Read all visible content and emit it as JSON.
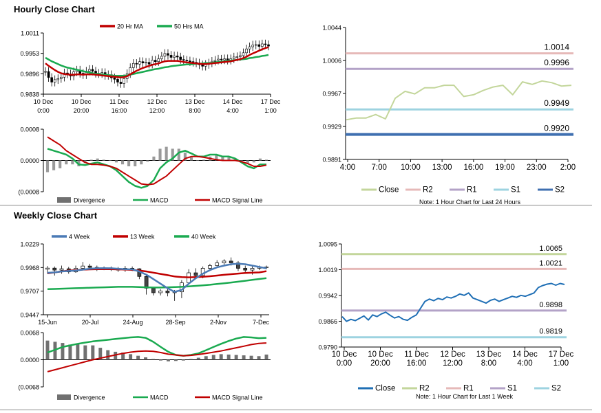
{
  "hourly_title": "Hourly Close Chart",
  "weekly_title": "Weekly Close Chart",
  "colors": {
    "red": "#c00000",
    "green": "#1aaa50",
    "blue": "#4a7ab5",
    "bar_gray": "#707070",
    "hist_gray": "#9a9a9a",
    "pale_green": "#c3d69b",
    "pink": "#e6b9b8",
    "lavender": "#b3a2c7",
    "light_blue": "#9dd3e0",
    "steel_blue": "#3f6fb0",
    "close_blue": "#1f6fb5",
    "grid": "#d9d9d9"
  },
  "chart_data": [
    {
      "id": "hourly_price",
      "type": "candlestick",
      "legend": [
        "20 Hr MA",
        "50 Hrs MA"
      ],
      "y_ticks": [
        "1.0011",
        "0.9953",
        "0.9896",
        "0.9838"
      ],
      "ylim": [
        0.9838,
        1.0011
      ],
      "x_ticks": [
        [
          "10 Dec",
          "0:00"
        ],
        [
          "10 Dec",
          "20:00"
        ],
        [
          "11 Dec",
          "16:00"
        ],
        [
          "12 Dec",
          "12:00"
        ],
        [
          "13 Dec",
          "8:00"
        ],
        [
          "14 Dec",
          "4:00"
        ],
        [
          "17 Dec",
          "1:00"
        ]
      ],
      "close": [
        0.9902,
        0.9885,
        0.9872,
        0.9879,
        0.9882,
        0.9886,
        0.9898,
        0.9895,
        0.9889,
        0.9901,
        0.9906,
        0.9897,
        0.9893,
        0.9903,
        0.9908,
        0.9903,
        0.9897,
        0.9896,
        0.9899,
        0.9891,
        0.9893,
        0.9884,
        0.988,
        0.9872,
        0.9868,
        0.9882,
        0.9896,
        0.9913,
        0.9925,
        0.9923,
        0.993,
        0.9926,
        0.9928,
        0.9923,
        0.9934,
        0.993,
        0.9938,
        0.9945,
        0.9953,
        0.9948,
        0.9942,
        0.9946,
        0.9943,
        0.9936,
        0.9934,
        0.9932,
        0.993,
        0.9928,
        0.9926,
        0.9921,
        0.9917,
        0.9922,
        0.9926,
        0.9931,
        0.9934,
        0.9937,
        0.9935,
        0.9938,
        0.9934,
        0.9938,
        0.9943,
        0.9944,
        0.9947,
        0.9955,
        0.9966,
        0.9972,
        0.9977,
        0.9978,
        0.9973,
        0.998,
        0.9978,
        0.9974
      ],
      "ma20": [
        0.9925,
        0.9918,
        0.9912,
        0.9906,
        0.9901,
        0.9897,
        0.9895,
        0.9894,
        0.9893,
        0.9893,
        0.9894,
        0.9894,
        0.9893,
        0.9894,
        0.9894,
        0.9894,
        0.9893,
        0.9892,
        0.9891,
        0.989,
        0.9889,
        0.9888,
        0.9887,
        0.9886,
        0.9885,
        0.9886,
        0.9889,
        0.9894,
        0.9899,
        0.9904,
        0.9908,
        0.9912,
        0.9915,
        0.9918,
        0.9921,
        0.9923,
        0.9925,
        0.9928,
        0.9931,
        0.9932,
        0.9932,
        0.9932,
        0.9932,
        0.9931,
        0.9929,
        0.9928,
        0.9927,
        0.9926,
        0.9925,
        0.9924,
        0.9923,
        0.9923,
        0.9924,
        0.9925,
        0.9926,
        0.9927,
        0.9928,
        0.9929,
        0.993,
        0.9931,
        0.9933,
        0.9935,
        0.9937,
        0.994,
        0.9944,
        0.9949,
        0.9953,
        0.9957,
        0.9961,
        0.9965,
        0.9968,
        0.9971
      ],
      "ma50": [
        0.9941,
        0.9936,
        0.9931,
        0.9927,
        0.9923,
        0.9919,
        0.9916,
        0.9913,
        0.9911,
        0.9909,
        0.9907,
        0.9905,
        0.9903,
        0.9901,
        0.9899,
        0.9897,
        0.9896,
        0.9895,
        0.9894,
        0.9893,
        0.9892,
        0.9891,
        0.989,
        0.989,
        0.989,
        0.989,
        0.9891,
        0.9893,
        0.9895,
        0.9897,
        0.9899,
        0.9901,
        0.9903,
        0.9905,
        0.9907,
        0.9909,
        0.991,
        0.9912,
        0.9914,
        0.9915,
        0.9917,
        0.9918,
        0.9919,
        0.992,
        0.9921,
        0.9922,
        0.9922,
        0.9923,
        0.9924,
        0.9924,
        0.9925,
        0.9926,
        0.9926,
        0.9927,
        0.9928,
        0.9929,
        0.993,
        0.9931,
        0.9932,
        0.9933,
        0.9934,
        0.9935,
        0.9936,
        0.9937,
        0.9938,
        0.994,
        0.9941,
        0.9943,
        0.9944,
        0.9946,
        0.9947,
        0.9949
      ]
    },
    {
      "id": "hourly_macd",
      "type": "macd",
      "y_ticks": [
        "0.0008",
        "0.0000",
        "(0.0008"
      ],
      "ylim": [
        -0.0008,
        0.0008
      ],
      "legend": [
        "Divergence",
        "MACD",
        "MACD Signal Line"
      ],
      "macd": [
        0.0003,
        0.00025,
        0.0002,
        0.00015,
        5e-05,
        -0.0001,
        -0.00012,
        -8e-05,
        -5e-05,
        -0.0001,
        -0.00015,
        -0.00025,
        -0.0004,
        -0.00055,
        -0.00065,
        -0.0007,
        -0.00065,
        -0.0005,
        -0.0002,
        -5e-05,
        5e-05,
        0.0002,
        0.00025,
        0.00018,
        0.0001,
        0.0001,
        0.00015,
        0.00015,
        0.0001,
        0.0001,
        5e-05,
        -5e-05,
        -0.00015,
        -0.0002,
        -0.0001,
        -0.0001
      ],
      "signal": [
        0.0006,
        0.0005,
        0.0004,
        0.00025,
        0.00015,
        5e-05,
        -5e-05,
        -0.0001,
        -0.0001,
        -0.00012,
        -0.00015,
        -0.0002,
        -0.0003,
        -0.0004,
        -0.0005,
        -0.0006,
        -0.00062,
        -0.0006,
        -0.0005,
        -0.0004,
        -0.00025,
        -0.0001,
        5e-05,
        0.0001,
        0.0001,
        8e-05,
        5e-05,
        2e-05,
        0.0,
        0.0,
        0.0,
        -3e-05,
        -8e-05,
        -0.00015,
        -0.00015,
        -0.00012
      ],
      "divergence": [
        -0.0003,
        -0.00025,
        -0.0002,
        -0.0001,
        -0.0001,
        -0.00015,
        -7e-05,
        2e-05,
        5e-05,
        2e-05,
        0.0,
        -5e-05,
        -0.0001,
        -0.00015,
        -0.00015,
        -0.0001,
        -3e-05,
        0.0001,
        0.0003,
        0.00035,
        0.0003,
        0.0003,
        0.0002,
        8e-05,
        0.0,
        2e-05,
        0.0001,
        0.00013,
        0.0001,
        0.0001,
        5e-05,
        -2e-05,
        -7e-05,
        -5e-05,
        5e-05,
        2e-05
      ]
    },
    {
      "id": "hourly_levels",
      "type": "line",
      "y_ticks": [
        "1.0044",
        "1.0006",
        "0.9967",
        "0.9929",
        "0.9891"
      ],
      "ylim": [
        0.9891,
        1.0044
      ],
      "x_ticks": [
        "4:00",
        "7:00",
        "10:00",
        "13:00",
        "16:00",
        "19:00",
        "23:00",
        "2:00"
      ],
      "close": [
        0.9937,
        0.9939,
        0.9939,
        0.9943,
        0.9938,
        0.9962,
        0.997,
        0.9967,
        0.9974,
        0.9974,
        0.9977,
        0.9977,
        0.9964,
        0.9966,
        0.9971,
        0.9975,
        0.9977,
        0.9966,
        0.9981,
        0.9978,
        0.9982,
        0.998,
        0.9976,
        0.9977
      ],
      "levels": [
        {
          "name": "R2",
          "value": 1.0014,
          "label": "1.0014"
        },
        {
          "name": "R1",
          "value": 0.9996,
          "label": "0.9996"
        },
        {
          "name": "S1",
          "value": 0.9949,
          "label": "0.9949"
        },
        {
          "name": "S2",
          "value": 0.992,
          "label": "0.9920"
        }
      ],
      "legend": [
        "Close",
        "R2",
        "R1",
        "S1",
        "S2"
      ],
      "note": "Note: 1 Hour Chart for Last 24 Hours"
    },
    {
      "id": "weekly_price",
      "type": "candlestick",
      "legend": [
        "4 Week",
        "13 Week",
        "40 Week"
      ],
      "y_ticks": [
        "1.0229",
        "0.9968",
        "0.9707",
        "0.9447"
      ],
      "ylim": [
        0.9447,
        1.0229
      ],
      "x_ticks": [
        "15-Jun",
        "20-Jul",
        "24-Aug",
        "28-Sep",
        "2-Nov",
        "7-Dec"
      ],
      "candles": [
        {
          "o": 0.995,
          "c": 0.9962,
          "h": 0.9985,
          "l": 0.99
        },
        {
          "o": 0.9962,
          "c": 0.994,
          "h": 0.998,
          "l": 0.988
        },
        {
          "o": 0.994,
          "c": 0.9955,
          "h": 0.999,
          "l": 0.99
        },
        {
          "o": 0.9955,
          "c": 0.992,
          "h": 0.9975,
          "l": 0.99
        },
        {
          "o": 0.992,
          "c": 0.996,
          "h": 0.999,
          "l": 0.991
        },
        {
          "o": 0.996,
          "c": 0.9985,
          "h": 1.003,
          "l": 0.994
        },
        {
          "o": 0.9985,
          "c": 0.997,
          "h": 1.001,
          "l": 0.995
        },
        {
          "o": 0.997,
          "c": 0.996,
          "h": 0.999,
          "l": 0.993
        },
        {
          "o": 0.996,
          "c": 0.9965,
          "h": 0.998,
          "l": 0.994
        },
        {
          "o": 0.9965,
          "c": 0.995,
          "h": 0.998,
          "l": 0.993
        },
        {
          "o": 0.995,
          "c": 0.994,
          "h": 0.9975,
          "l": 0.992
        },
        {
          "o": 0.994,
          "c": 0.996,
          "h": 0.9985,
          "l": 0.992
        },
        {
          "o": 0.996,
          "c": 0.9955,
          "h": 0.998,
          "l": 0.993
        },
        {
          "o": 0.9955,
          "c": 0.987,
          "h": 0.996,
          "l": 0.984
        },
        {
          "o": 0.987,
          "c": 0.974,
          "h": 0.988,
          "l": 0.967
        },
        {
          "o": 0.974,
          "c": 0.969,
          "h": 0.975,
          "l": 0.966
        },
        {
          "o": 0.969,
          "c": 0.971,
          "h": 0.973,
          "l": 0.966
        },
        {
          "o": 0.971,
          "c": 0.969,
          "h": 0.973,
          "l": 0.965
        },
        {
          "o": 0.969,
          "c": 0.97,
          "h": 0.972,
          "l": 0.96
        },
        {
          "o": 0.97,
          "c": 0.98,
          "h": 0.983,
          "l": 0.963
        },
        {
          "o": 0.98,
          "c": 0.991,
          "h": 0.995,
          "l": 0.979
        },
        {
          "o": 0.991,
          "c": 0.988,
          "h": 0.996,
          "l": 0.986
        },
        {
          "o": 0.988,
          "c": 0.996,
          "h": 0.998,
          "l": 0.985
        },
        {
          "o": 0.996,
          "c": 0.999,
          "h": 1.001,
          "l": 0.994
        },
        {
          "o": 0.999,
          "c": 1.002,
          "h": 1.005,
          "l": 0.998
        },
        {
          "o": 1.002,
          "c": 1.004,
          "h": 1.006,
          "l": 1.0
        },
        {
          "o": 1.004,
          "c": 1.002,
          "h": 1.008,
          "l": 0.999
        },
        {
          "o": 1.002,
          "c": 0.996,
          "h": 1.004,
          "l": 0.993
        },
        {
          "o": 0.996,
          "c": 0.994,
          "h": 0.999,
          "l": 0.991
        },
        {
          "o": 0.994,
          "c": 0.996,
          "h": 0.998,
          "l": 0.989
        },
        {
          "o": 0.996,
          "c": 0.997,
          "h": 0.999,
          "l": 0.994
        },
        {
          "o": 0.997,
          "c": 0.9975,
          "h": 0.999,
          "l": 0.995
        }
      ],
      "wk4": [
        0.991,
        0.9915,
        0.9925,
        0.993,
        0.9935,
        0.9945,
        0.9955,
        0.996,
        0.9962,
        0.996,
        0.9955,
        0.995,
        0.9948,
        0.9925,
        0.989,
        0.984,
        0.979,
        0.974,
        0.97,
        0.972,
        0.979,
        0.985,
        0.99,
        0.994,
        0.997,
        0.999,
        1.0005,
        1.001,
        1.0005,
        0.999,
        0.9975,
        0.996
      ],
      "wk13": [
        0.9905,
        0.9915,
        0.9925,
        0.9935,
        0.994,
        0.9945,
        0.9948,
        0.995,
        0.995,
        0.995,
        0.9948,
        0.9946,
        0.9942,
        0.9935,
        0.9925,
        0.9912,
        0.9898,
        0.9884,
        0.987,
        0.9862,
        0.986,
        0.9862,
        0.9866,
        0.9872,
        0.988,
        0.9888,
        0.9895,
        0.9902,
        0.9908,
        0.9912,
        0.9915,
        0.9928
      ],
      "wk40": [
        0.973,
        0.9732,
        0.9735,
        0.9737,
        0.974,
        0.9742,
        0.9745,
        0.9748,
        0.975,
        0.9752,
        0.9755,
        0.9755,
        0.9755,
        0.9752,
        0.975,
        0.9748,
        0.9748,
        0.975,
        0.9752,
        0.9755,
        0.976,
        0.9766,
        0.9772,
        0.9778,
        0.9786,
        0.9794,
        0.9803,
        0.9812,
        0.9822,
        0.9832,
        0.9842,
        0.9852
      ]
    },
    {
      "id": "weekly_macd",
      "type": "macd",
      "y_ticks": [
        "0.0068",
        "0.0000",
        "(0.0068"
      ],
      "ylim": [
        -0.0068,
        0.0068
      ],
      "legend": [
        "Divergence",
        "MACD",
        "MACD Signal Line"
      ],
      "macd": [
        0.0018,
        0.0025,
        0.0032,
        0.0036,
        0.004,
        0.0043,
        0.0046,
        0.0048,
        0.005,
        0.0052,
        0.0054,
        0.0056,
        0.0057,
        0.0055,
        0.0045,
        0.0032,
        0.002,
        0.0012,
        0.001,
        0.0012,
        0.0016,
        0.0024,
        0.0032,
        0.004,
        0.0047,
        0.0053,
        0.0057,
        0.0056,
        0.0054,
        0.0055
      ],
      "signal": [
        -0.003,
        -0.0025,
        -0.002,
        -0.0015,
        -0.001,
        -0.0005,
        0.0,
        0.0004,
        0.0008,
        0.0012,
        0.0016,
        0.0019,
        0.0021,
        0.0022,
        0.0021,
        0.0018,
        0.0014,
        0.0012,
        0.001,
        0.0011,
        0.0013,
        0.0016,
        0.0019,
        0.0022,
        0.0026,
        0.003,
        0.0034,
        0.0038,
        0.0041,
        0.0042
      ],
      "divergence": [
        0.0048,
        0.0045,
        0.0042,
        0.0038,
        0.004,
        0.0036,
        0.0036,
        0.003,
        0.0024,
        0.002,
        0.0018,
        0.0014,
        0.001,
        0.0006,
        0.0002,
        -0.0002,
        -0.0004,
        -0.0003,
        -0.0002,
        0.0002,
        0.0005,
        0.0009,
        0.0012,
        0.0014,
        0.0013,
        0.0012,
        0.0011,
        0.001,
        0.0009,
        0.0013
      ]
    },
    {
      "id": "weekly_levels",
      "type": "line",
      "y_ticks": [
        "1.0095",
        "1.0019",
        "0.9942",
        "0.9866",
        "0.9790"
      ],
      "ylim": [
        0.979,
        1.0095
      ],
      "x_ticks": [
        [
          "10 Dec",
          "0:00"
        ],
        [
          "10 Dec",
          "20:00"
        ],
        [
          "11 Dec",
          "16:00"
        ],
        [
          "12 Dec",
          "12:00"
        ],
        [
          "13 Dec",
          "8:00"
        ],
        [
          "14 Dec",
          "4:00"
        ],
        [
          "17 Dec",
          "1:00"
        ]
      ],
      "close": [
        0.988,
        0.9866,
        0.9872,
        0.9868,
        0.9875,
        0.9882,
        0.987,
        0.9885,
        0.988,
        0.9888,
        0.9893,
        0.9884,
        0.9876,
        0.988,
        0.9872,
        0.9869,
        0.9878,
        0.9885,
        0.9905,
        0.9925,
        0.9932,
        0.9927,
        0.9934,
        0.993,
        0.9938,
        0.9935,
        0.994,
        0.9947,
        0.9943,
        0.995,
        0.9935,
        0.993,
        0.9925,
        0.992,
        0.9928,
        0.9932,
        0.9925,
        0.993,
        0.9935,
        0.994,
        0.9937,
        0.9943,
        0.994,
        0.9945,
        0.995,
        0.9966,
        0.9972,
        0.9976,
        0.9978,
        0.9973,
        0.9978,
        0.9975
      ],
      "levels": [
        {
          "name": "R2",
          "value": 1.0065,
          "label": "1.0065"
        },
        {
          "name": "R1",
          "value": 1.0021,
          "label": "1.0021"
        },
        {
          "name": "S1",
          "value": 0.9898,
          "label": "0.9898"
        },
        {
          "name": "S2",
          "value": 0.9819,
          "label": "0.9819"
        }
      ],
      "legend": [
        "Close",
        "R2",
        "R1",
        "S1",
        "S2"
      ],
      "note": "Note: 1 Hour Chart for Last 1 Week"
    }
  ]
}
